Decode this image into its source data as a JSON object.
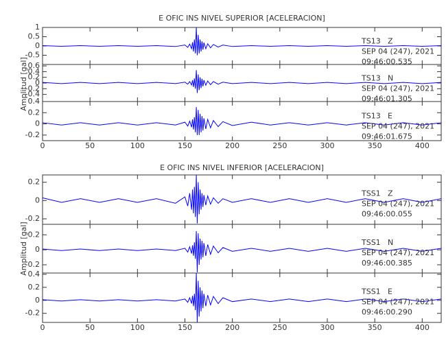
{
  "chart_data": [
    {
      "type": "line",
      "title": "E OFIC INS NIVEL SUPERIOR [ACELERACION]",
      "ylabel": "Amplitud [gal]",
      "xlim": [
        0,
        420
      ],
      "xticks": [
        0,
        50,
        100,
        150,
        200,
        250,
        300,
        350,
        400
      ],
      "panels": [
        {
          "ylim": [
            -1.0,
            1.0
          ],
          "yticks": [
            -0.5,
            0.0,
            0.5,
            1.0
          ],
          "station": "TS13",
          "component": "Z",
          "date": "SEP 04 (247), 2021",
          "time": "09:46:00.535",
          "x": [
            0,
            20,
            40,
            60,
            80,
            100,
            120,
            140,
            150,
            153,
            155,
            157,
            158,
            159,
            160,
            161,
            162,
            163,
            164,
            165,
            166,
            167,
            168,
            169,
            170,
            172,
            174,
            177,
            180,
            185,
            190,
            200,
            220,
            240,
            260,
            280,
            300,
            320,
            340,
            360,
            380,
            400,
            420
          ],
          "series": [
            {
              "color": "#0000ff",
              "values": [
                0.02,
                -0.02,
                0.02,
                -0.02,
                0.02,
                -0.02,
                0.02,
                -0.03,
                0.05,
                -0.08,
                0.1,
                -0.15,
                0.2,
                -0.3,
                0.35,
                -0.4,
                1.0,
                -0.5,
                0.6,
                -0.4,
                0.35,
                -0.3,
                0.25,
                -0.2,
                0.18,
                -0.15,
                0.12,
                -0.1,
                0.08,
                -0.06,
                0.05,
                -0.03,
                0.02,
                -0.02,
                0.02,
                -0.02,
                0.02,
                -0.02,
                0.02,
                -0.02,
                0.02,
                -0.02,
                0.02
              ]
            }
          ]
        },
        {
          "ylim": [
            -0.65,
            0.65
          ],
          "yticks": [
            -0.4,
            -0.2,
            0.0,
            0.2,
            0.4,
            0.6
          ],
          "station": "TS13",
          "component": "N",
          "date": "SEP 04 (247), 2021",
          "time": "09:46:01.305",
          "x": [
            0,
            20,
            40,
            60,
            80,
            100,
            120,
            140,
            150,
            153,
            155,
            157,
            158,
            159,
            160,
            161,
            162,
            163,
            164,
            165,
            166,
            167,
            168,
            169,
            170,
            172,
            174,
            177,
            180,
            185,
            190,
            200,
            220,
            240,
            260,
            280,
            300,
            320,
            340,
            360,
            380,
            400,
            420
          ],
          "series": [
            {
              "color": "#0000ff",
              "values": [
                0.02,
                -0.02,
                0.02,
                -0.02,
                0.02,
                -0.02,
                0.02,
                -0.02,
                0.03,
                -0.04,
                0.05,
                -0.07,
                0.1,
                -0.14,
                0.16,
                -0.2,
                0.45,
                -0.35,
                0.3,
                -0.25,
                0.2,
                -0.18,
                0.15,
                -0.12,
                0.1,
                -0.08,
                0.07,
                -0.06,
                0.05,
                -0.04,
                0.03,
                -0.02,
                0.02,
                -0.02,
                0.02,
                -0.02,
                0.02,
                -0.02,
                0.02,
                -0.02,
                0.02,
                -0.02,
                0.02
              ]
            }
          ]
        },
        {
          "ylim": [
            -0.3,
            0.4
          ],
          "yticks": [
            -0.2,
            0.0,
            0.2,
            0.4
          ],
          "station": "TS13",
          "component": "E",
          "date": "SEP 04 (247), 2021",
          "time": "09:46:01.675",
          "x": [
            0,
            20,
            40,
            60,
            80,
            100,
            120,
            140,
            150,
            153,
            155,
            157,
            158,
            159,
            160,
            161,
            162,
            163,
            164,
            165,
            166,
            167,
            168,
            169,
            170,
            172,
            174,
            177,
            180,
            185,
            190,
            200,
            220,
            240,
            260,
            280,
            300,
            320,
            340,
            360,
            380,
            400,
            420
          ],
          "series": [
            {
              "color": "#0000ff",
              "values": [
                0.02,
                -0.02,
                0.02,
                -0.02,
                0.02,
                -0.02,
                0.02,
                -0.02,
                0.03,
                -0.04,
                0.05,
                -0.06,
                0.08,
                -0.1,
                0.12,
                -0.15,
                0.3,
                -0.2,
                0.25,
                -0.2,
                0.18,
                -0.15,
                0.14,
                -0.12,
                0.1,
                -0.09,
                0.08,
                -0.07,
                0.06,
                -0.05,
                0.04,
                -0.03,
                0.03,
                -0.02,
                0.02,
                -0.02,
                0.02,
                -0.02,
                0.02,
                -0.02,
                0.02,
                -0.02,
                0.02
              ]
            }
          ]
        }
      ]
    },
    {
      "type": "line",
      "title": "E OFIC INS NIVEL INFERIOR [ACELERACION]",
      "ylabel": "Amplitud [gal]",
      "xlim": [
        0,
        420
      ],
      "xticks": [
        0,
        50,
        100,
        150,
        200,
        250,
        300,
        350,
        400
      ],
      "panels": [
        {
          "ylim": [
            -0.26,
            0.28
          ],
          "yticks": [
            -0.2,
            0.0,
            0.2
          ],
          "station": "TSS1",
          "component": "Z",
          "date": "SEP 04 (247), 2021",
          "time": "09:46:00.055",
          "x": [
            0,
            20,
            40,
            60,
            80,
            100,
            120,
            140,
            150,
            153,
            155,
            157,
            158,
            159,
            160,
            161,
            162,
            163,
            164,
            165,
            166,
            167,
            168,
            169,
            170,
            172,
            174,
            177,
            180,
            185,
            190,
            200,
            220,
            240,
            260,
            280,
            300,
            320,
            340,
            360,
            380,
            400,
            420
          ],
          "series": [
            {
              "color": "#0000ff",
              "values": [
                0.03,
                -0.02,
                0.02,
                -0.02,
                0.02,
                -0.02,
                0.02,
                -0.03,
                0.04,
                -0.06,
                0.08,
                -0.1,
                0.12,
                -0.14,
                0.15,
                -0.18,
                0.28,
                -0.25,
                0.2,
                -0.15,
                0.12,
                -0.1,
                0.08,
                -0.07,
                0.06,
                -0.05,
                0.05,
                -0.04,
                0.03,
                -0.03,
                0.02,
                -0.02,
                0.02,
                -0.02,
                0.02,
                -0.02,
                0.02,
                -0.02,
                0.02,
                -0.02,
                0.02,
                -0.02,
                0.02
              ]
            }
          ]
        },
        {
          "ylim": [
            -0.31,
            0.34
          ],
          "yticks": [
            -0.2,
            0.0,
            0.2
          ],
          "station": "TSS1",
          "component": "N",
          "date": "SEP 04 (247), 2021",
          "time": "09:46:00.385",
          "x": [
            0,
            20,
            40,
            60,
            80,
            100,
            120,
            140,
            150,
            153,
            155,
            157,
            158,
            159,
            160,
            161,
            162,
            163,
            164,
            165,
            166,
            167,
            168,
            169,
            170,
            172,
            174,
            177,
            180,
            185,
            190,
            200,
            220,
            240,
            260,
            280,
            300,
            320,
            340,
            360,
            380,
            400,
            420
          ],
          "series": [
            {
              "color": "#0000ff",
              "values": [
                0.01,
                -0.01,
                0.01,
                -0.01,
                0.01,
                -0.01,
                0.01,
                -0.01,
                0.02,
                -0.03,
                0.04,
                -0.05,
                0.06,
                -0.08,
                0.1,
                -0.12,
                0.25,
                -0.3,
                0.22,
                -0.2,
                0.15,
                -0.13,
                0.12,
                -0.1,
                0.09,
                -0.08,
                0.07,
                -0.06,
                0.05,
                -0.04,
                0.03,
                -0.02,
                0.02,
                -0.02,
                0.02,
                -0.02,
                0.02,
                -0.02,
                0.02,
                -0.02,
                0.02,
                -0.02,
                0.02
              ]
            }
          ]
        },
        {
          "ylim": [
            -0.34,
            0.42
          ],
          "yticks": [
            -0.2,
            0.0,
            0.2,
            0.4
          ],
          "station": "TSS1",
          "component": "E",
          "date": "SEP 04 (247), 2021",
          "time": "09:46:00.290",
          "x": [
            0,
            20,
            40,
            60,
            80,
            100,
            120,
            140,
            150,
            153,
            155,
            157,
            158,
            159,
            160,
            161,
            162,
            163,
            164,
            165,
            166,
            167,
            168,
            169,
            170,
            172,
            174,
            177,
            180,
            185,
            190,
            200,
            220,
            240,
            260,
            280,
            300,
            320,
            340,
            360,
            380,
            400,
            420
          ],
          "series": [
            {
              "color": "#0000ff",
              "values": [
                0.01,
                -0.01,
                0.01,
                -0.01,
                0.01,
                -0.01,
                0.01,
                -0.01,
                0.02,
                -0.03,
                0.04,
                -0.05,
                0.07,
                -0.09,
                0.1,
                -0.15,
                0.42,
                -0.34,
                0.3,
                -0.25,
                0.2,
                -0.17,
                0.15,
                -0.12,
                0.1,
                -0.09,
                0.08,
                -0.07,
                0.06,
                -0.05,
                0.04,
                -0.02,
                0.02,
                -0.02,
                0.02,
                -0.02,
                0.02,
                -0.02,
                0.02,
                -0.02,
                0.02,
                -0.02,
                0.02
              ]
            }
          ]
        }
      ]
    }
  ]
}
